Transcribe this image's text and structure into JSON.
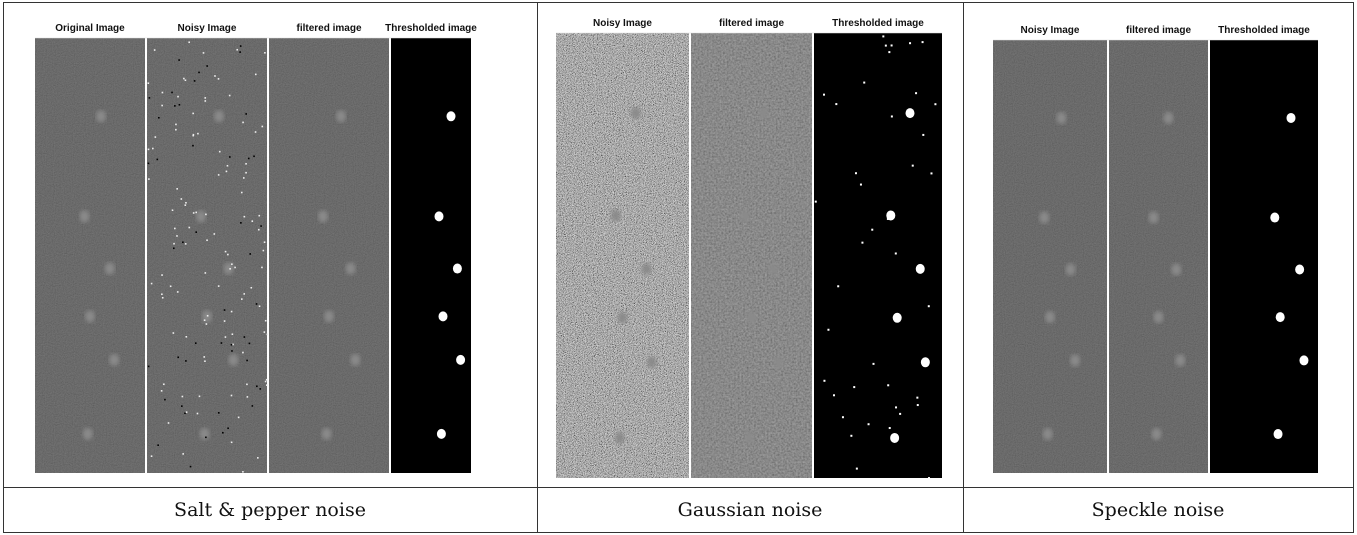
{
  "cells": [
    {
      "panels": [
        "Original Image",
        "Noisy Image",
        "filtered image",
        "Thresholded image"
      ],
      "caption": "Salt & pepper noise"
    },
    {
      "panels": [
        "Noisy Image",
        "filtered image",
        "Thresholded image"
      ],
      "caption": "Gaussian noise"
    },
    {
      "panels": [
        "Noisy Image",
        "filtered image",
        "Thresholded image"
      ],
      "caption": "Speckle noise"
    }
  ]
}
